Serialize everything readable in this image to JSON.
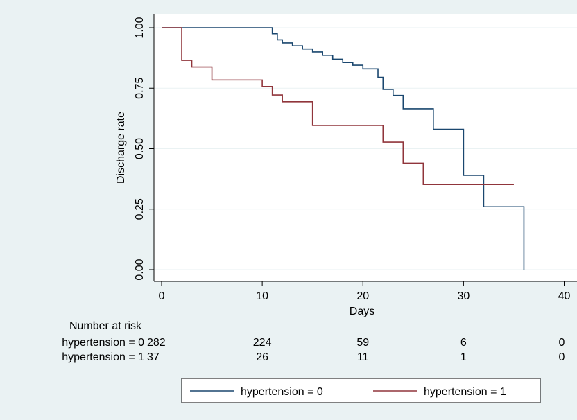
{
  "chart_data": {
    "type": "line",
    "title": "",
    "xlabel": "Days",
    "ylabel": "Discharge rate",
    "xlim": [
      0,
      40
    ],
    "ylim": [
      0,
      1
    ],
    "x_ticks": [
      0,
      10,
      20,
      30,
      40
    ],
    "x_tick_labels": [
      "0",
      "10",
      "20",
      "30",
      "40"
    ],
    "y_ticks": [
      0,
      0.25,
      0.5,
      0.75,
      1
    ],
    "y_tick_labels": [
      "0.00",
      "0.25",
      "0.50",
      "0.75",
      "1.00"
    ],
    "grid": true,
    "legend_position": "bottom",
    "series": [
      {
        "name": "hypertension = 0",
        "color": "#1a476f",
        "step": true,
        "x": [
          0,
          11,
          11.5,
          12,
          13,
          14,
          15,
          16,
          17,
          18,
          19,
          20,
          21.5,
          22,
          23,
          24,
          27,
          30,
          32,
          36,
          36
        ],
        "y": [
          1.0,
          0.975,
          0.95,
          0.937,
          0.925,
          0.912,
          0.9,
          0.886,
          0.87,
          0.856,
          0.845,
          0.83,
          0.795,
          0.745,
          0.72,
          0.665,
          0.58,
          0.39,
          0.26,
          0.26,
          0.0
        ]
      },
      {
        "name": "hypertension = 1",
        "color": "#90353b",
        "step": true,
        "x": [
          0,
          2,
          3,
          5,
          10,
          11,
          12,
          15,
          22,
          24,
          26,
          35
        ],
        "y": [
          1.0,
          0.865,
          0.838,
          0.784,
          0.757,
          0.722,
          0.694,
          0.596,
          0.527,
          0.44,
          0.352,
          0.352
        ]
      }
    ],
    "risk_table": {
      "title": "Number at risk",
      "times": [
        0,
        10,
        20,
        30,
        40
      ],
      "rows": [
        {
          "label": "hypertension = 0",
          "values": [
            "282",
            "224",
            "59",
            "6",
            "0"
          ]
        },
        {
          "label": "hypertension = 1",
          "values": [
            "37",
            "26",
            "11",
            "1",
            "0"
          ]
        }
      ]
    }
  }
}
